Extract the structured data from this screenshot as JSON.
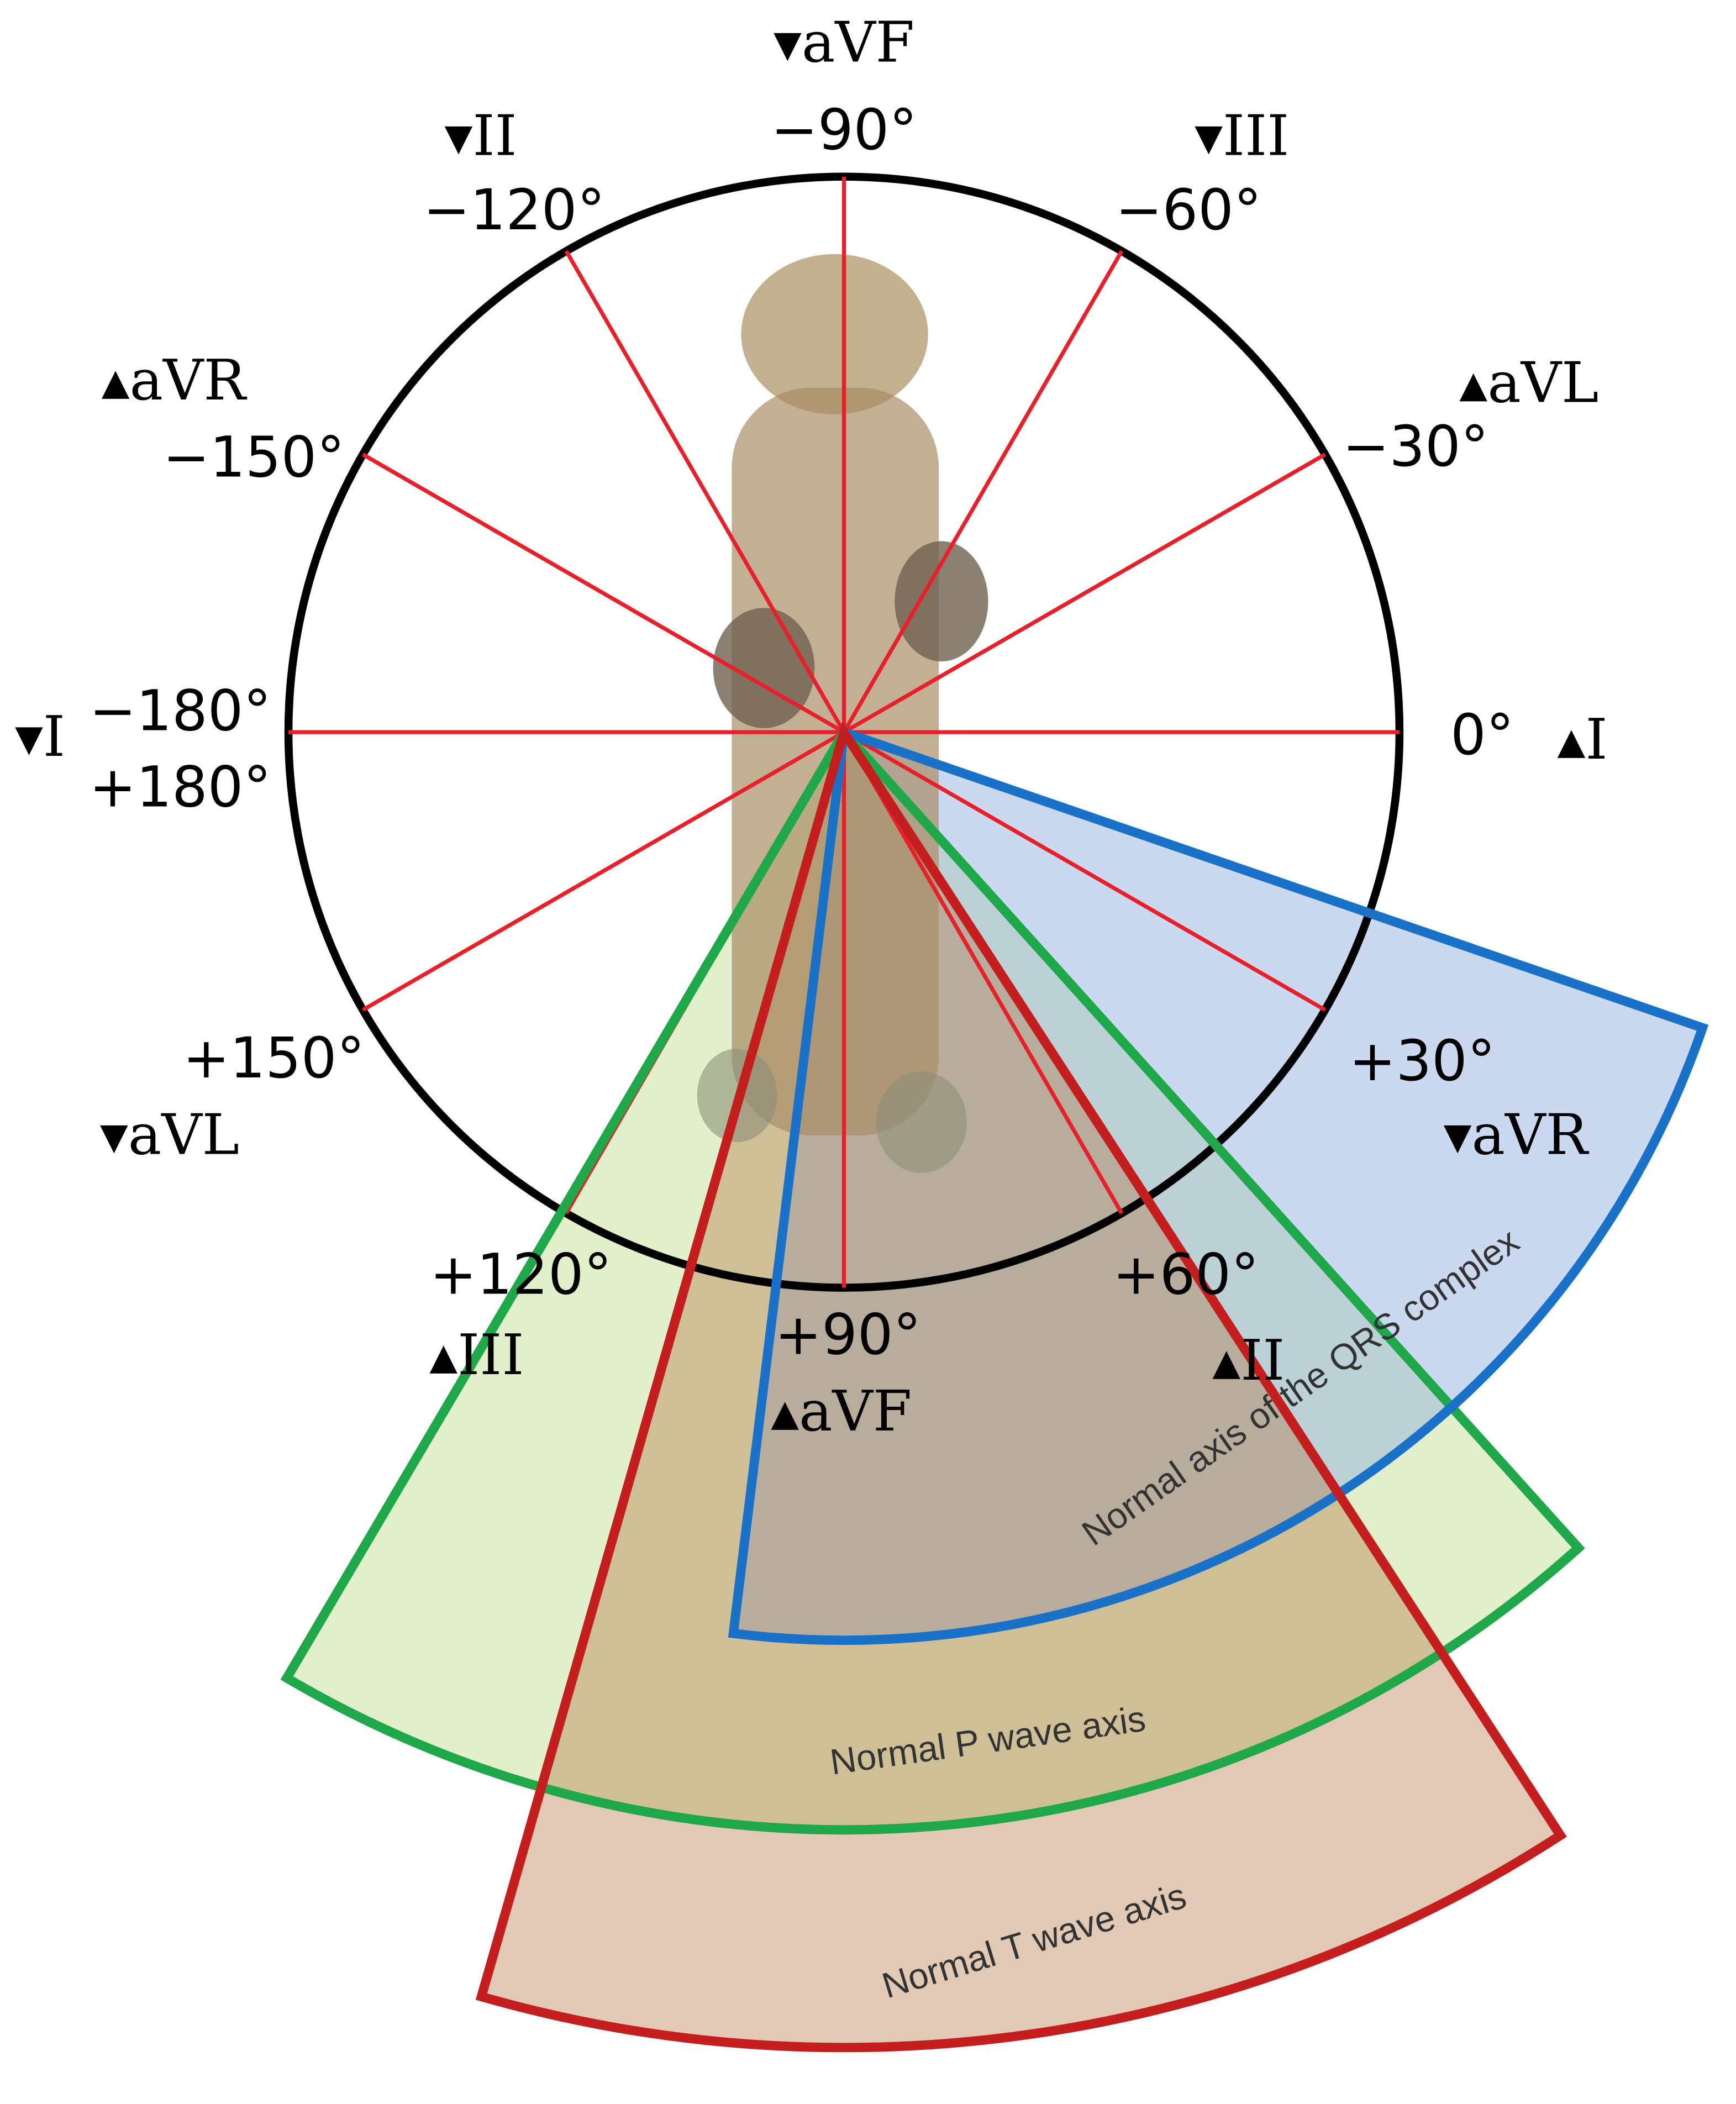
{
  "angles": [
    "−90°",
    "−120°",
    "−60°",
    "−150°",
    "−30°",
    "−180°",
    "+180°",
    "0°",
    "+150°",
    "+30°",
    "+120°",
    "+90°",
    "+60°"
  ],
  "leads": [
    "▾aVF",
    "▾II",
    "▾III",
    "▴aVR",
    "▴aVL",
    "▾I",
    "▴I",
    "▾aVL",
    "▾aVR",
    "▴III",
    "▴aVF",
    "▴II"
  ],
  "sectors": [
    "Normal axis of the QRS complex",
    "Normal P wave axis",
    "Normal T wave axis"
  ]
}
